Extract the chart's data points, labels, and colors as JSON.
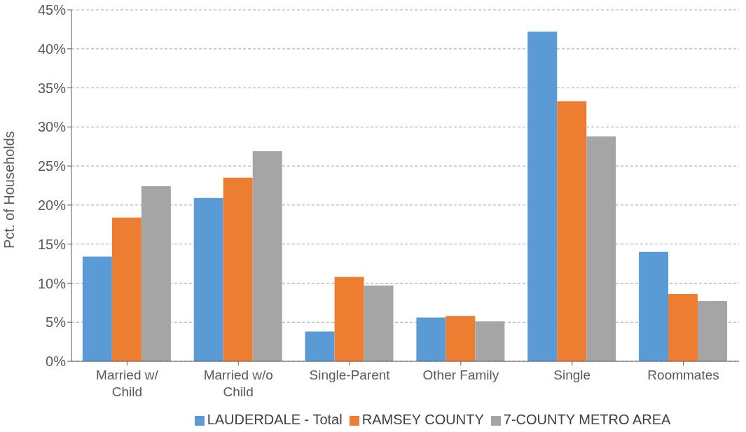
{
  "chart_data": {
    "type": "bar",
    "ylabel": "Pct. of Households",
    "categories": [
      "Married w/ Child",
      "Married w/o Child",
      "Single-Parent",
      "Other Family",
      "Single",
      "Roommates"
    ],
    "series": [
      {
        "name": "LAUDERDALE - Total",
        "color": "#5b9bd5",
        "values": [
          13.4,
          20.9,
          3.8,
          5.6,
          42.2,
          14.0
        ]
      },
      {
        "name": "RAMSEY COUNTY",
        "color": "#ed7d31",
        "values": [
          18.4,
          23.5,
          10.8,
          5.8,
          33.3,
          8.6
        ]
      },
      {
        "name": "7-COUNTY METRO AREA",
        "color": "#a5a5a5",
        "values": [
          22.4,
          26.9,
          9.7,
          5.1,
          28.8,
          7.7
        ]
      }
    ],
    "ylim": [
      0,
      45
    ],
    "yticks": [
      {
        "value": 0,
        "label": "0%"
      },
      {
        "value": 5,
        "label": "5%"
      },
      {
        "value": 10,
        "label": "10%"
      },
      {
        "value": 15,
        "label": "15%"
      },
      {
        "value": 20,
        "label": "20%"
      },
      {
        "value": 25,
        "label": "25%"
      },
      {
        "value": 30,
        "label": "30%"
      },
      {
        "value": 35,
        "label": "35%"
      },
      {
        "value": 40,
        "label": "40%"
      },
      {
        "value": 45,
        "label": "45%"
      }
    ],
    "grid": "y",
    "legend": "bottom"
  }
}
